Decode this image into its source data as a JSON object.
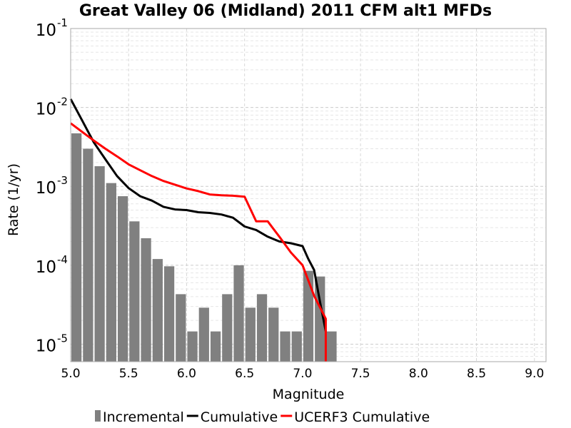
{
  "chart_data": {
    "type": "bar",
    "title": "Great Valley 06 (Midland) 2011 CFM alt1 MFDs",
    "xlabel": "Magnitude",
    "ylabel": "Rate (1/yr)",
    "xlim": [
      5.0,
      9.1
    ],
    "ylim": [
      6e-06,
      0.1
    ],
    "yscale": "log",
    "grid": true,
    "xticks": [
      "5.0",
      "5.5",
      "6.0",
      "6.5",
      "7.0",
      "7.5",
      "8.0",
      "8.5",
      "9.0"
    ],
    "yticks": [
      {
        "base": "10",
        "exp": "-5",
        "value": 1e-05
      },
      {
        "base": "10",
        "exp": "-4",
        "value": 0.0001
      },
      {
        "base": "10",
        "exp": "-3",
        "value": 0.001
      },
      {
        "base": "10",
        "exp": "-2",
        "value": 0.01
      },
      {
        "base": "10",
        "exp": "-1",
        "value": 0.1
      }
    ],
    "legend_position": "bottom",
    "series": [
      {
        "name": "Incremental",
        "type": "bar",
        "color": "#808080",
        "x": [
          5.0,
          5.1,
          5.2,
          5.3,
          5.4,
          5.5,
          5.6,
          5.7,
          5.8,
          5.9,
          6.0,
          6.1,
          6.2,
          6.3,
          6.4,
          6.5,
          6.6,
          6.7,
          6.8,
          6.9,
          7.0,
          7.1,
          7.2
        ],
        "values": [
          0.0047,
          0.003,
          0.0018,
          0.0011,
          0.00075,
          0.00036,
          0.00022,
          0.00012,
          9.7e-05,
          4.3e-05,
          1.45e-05,
          2.9e-05,
          1.45e-05,
          4.3e-05,
          0.0001,
          2.9e-05,
          4.3e-05,
          2.9e-05,
          1.45e-05,
          1.45e-05,
          8.5e-05,
          7.2e-05,
          1.45e-05
        ]
      },
      {
        "name": "Cumulative",
        "type": "line",
        "color": "#000000",
        "x": [
          5.0,
          5.1,
          5.2,
          5.3,
          5.4,
          5.5,
          5.6,
          5.7,
          5.8,
          5.9,
          6.0,
          6.1,
          6.2,
          6.3,
          6.4,
          6.5,
          6.6,
          6.7,
          6.8,
          6.9,
          7.0,
          7.05,
          7.1,
          7.15,
          7.2
        ],
        "values": [
          0.0128,
          0.0068,
          0.0036,
          0.0022,
          0.00135,
          0.00095,
          0.00075,
          0.00066,
          0.00055,
          0.00051,
          0.0005,
          0.00047,
          0.00046,
          0.00044,
          0.0004,
          0.00031,
          0.00028,
          0.00023,
          0.0002,
          0.00019,
          0.000175,
          0.00012,
          8.7e-05,
          3.5e-05,
          1.45e-05
        ]
      },
      {
        "name": "UCERF3 Cumulative",
        "type": "line",
        "color": "#ff0000",
        "x": [
          5.0,
          5.1,
          5.2,
          5.3,
          5.4,
          5.5,
          5.6,
          5.7,
          5.8,
          5.9,
          6.0,
          6.1,
          6.2,
          6.3,
          6.4,
          6.5,
          6.6,
          6.7,
          6.8,
          6.9,
          7.0,
          7.1,
          7.2,
          7.2
        ],
        "values": [
          0.0063,
          0.0049,
          0.0038,
          0.003,
          0.0024,
          0.0019,
          0.0016,
          0.00135,
          0.00117,
          0.00105,
          0.00094,
          0.00087,
          0.00079,
          0.00077,
          0.00076,
          0.00074,
          0.00036,
          0.00036,
          0.00023,
          0.000145,
          0.0001,
          4.1e-05,
          2.1e-05,
          1e-06
        ]
      }
    ]
  }
}
